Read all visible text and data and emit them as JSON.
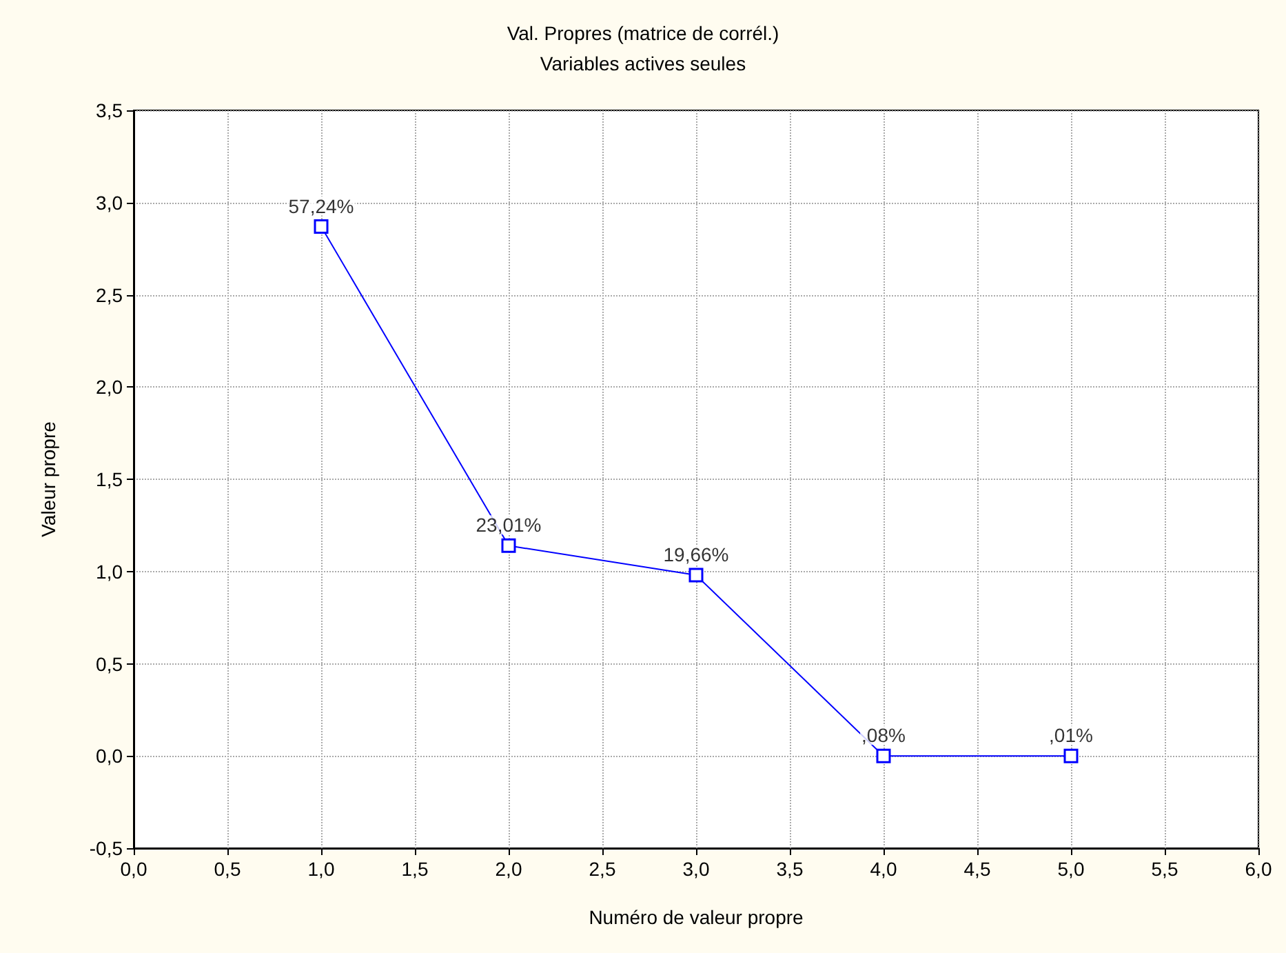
{
  "chart_data": {
    "type": "line",
    "title": "Val. Propres (matrice de corrél.)",
    "subtitle": "Variables actives seules",
    "xlabel": "Numéro de valeur propre",
    "ylabel": "Valeur propre",
    "x": [
      1,
      2,
      3,
      4,
      5
    ],
    "series": [
      {
        "color": "#0000ff",
        "values": [
          2.87,
          1.14,
          0.98,
          0,
          0
        ]
      }
    ],
    "annotations": [
      {
        "text": "57,24%",
        "x": 1,
        "y": 2.87
      },
      {
        "text": "23,01%",
        "x": 2,
        "y": 1.14
      },
      {
        "text": "19,66%",
        "x": 3,
        "y": 0.98
      },
      {
        "text": ",08%",
        "x": 4,
        "y": 0
      },
      {
        "text": ",01%",
        "x": 5,
        "y": 0
      }
    ],
    "xlim": [
      0,
      6
    ],
    "ylim": [
      -0.5,
      3.5
    ],
    "xticks": [
      {
        "value": 0,
        "label": "0,0"
      },
      {
        "value": 0.5,
        "label": "0,5"
      },
      {
        "value": 1,
        "label": "1,0"
      },
      {
        "value": 1.5,
        "label": "1,5"
      },
      {
        "value": 2,
        "label": "2,0"
      },
      {
        "value": 2.5,
        "label": "2,5"
      },
      {
        "value": 3,
        "label": "3,0"
      },
      {
        "value": 3.5,
        "label": "3,5"
      },
      {
        "value": 4,
        "label": "4,0"
      },
      {
        "value": 4.5,
        "label": "4,5"
      },
      {
        "value": 5,
        "label": "5,0"
      },
      {
        "value": 5.5,
        "label": "5,5"
      },
      {
        "value": 6,
        "label": "6,0"
      }
    ],
    "yticks": [
      {
        "value": -0.5,
        "label": "-0,5"
      },
      {
        "value": 0,
        "label": "0,0"
      },
      {
        "value": 0.5,
        "label": "0,5"
      },
      {
        "value": 1,
        "label": "1,0"
      },
      {
        "value": 1.5,
        "label": "1,5"
      },
      {
        "value": 2,
        "label": "2,0"
      },
      {
        "value": 2.5,
        "label": "2,5"
      },
      {
        "value": 3,
        "label": "3,0"
      },
      {
        "value": 3.5,
        "label": "3,5"
      }
    ],
    "grid": true,
    "marker": "square",
    "line_style": "solid"
  }
}
